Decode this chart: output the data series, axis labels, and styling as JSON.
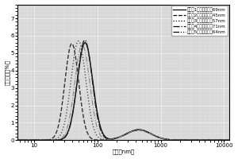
{
  "title": "",
  "xlabel": "粒径［nm］",
  "ylabel": "体积分数［%］",
  "xlim": [
    5.5,
    12000
  ],
  "ylim": [
    0,
    7.8
  ],
  "yticks": [
    0,
    1,
    2,
    3,
    4,
    5,
    6,
    7
  ],
  "legend": [
    "实施例1，中値粒径为69nm",
    "实施例2，中値粒径为45nm",
    "实施例3，中値粒径为57nm",
    "实施例4，中値粒径为71nm",
    "实施例5，中値粒径为64nm"
  ],
  "linestyles": [
    "-",
    "--",
    ":",
    "-.",
    "-."
  ],
  "linewidths": [
    1.0,
    1.0,
    1.0,
    1.0,
    0.8
  ],
  "colors": [
    "#111111",
    "#333333",
    "#555555",
    "#222222",
    "#888888"
  ],
  "background": "#d8d8d8",
  "curve_params": [
    [
      69,
      0.28,
      5.6,
      550,
      0.45,
      0.6
    ],
    [
      42,
      0.25,
      5.55,
      550,
      0.45,
      0.58
    ],
    [
      54,
      0.27,
      5.7,
      550,
      0.45,
      0.57
    ],
    [
      68,
      0.27,
      5.75,
      550,
      0.45,
      0.6
    ],
    [
      62,
      0.27,
      5.5,
      550,
      0.45,
      0.58
    ]
  ]
}
